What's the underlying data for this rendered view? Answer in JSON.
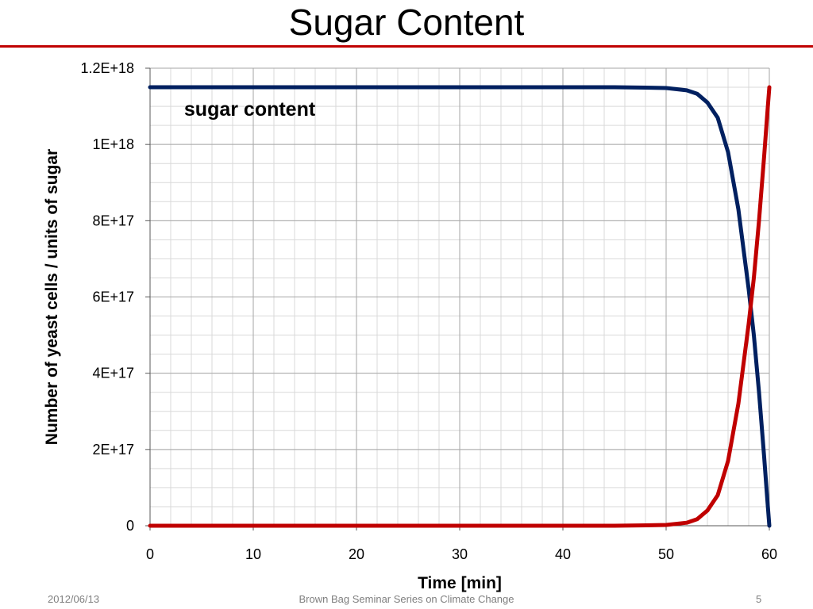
{
  "slide": {
    "title": "Sugar Content",
    "footer_date": "2012/06/13",
    "footer_center": "Brown Bag Seminar Series on Climate Change",
    "page_number": "5"
  },
  "colors": {
    "title_rule": "#c00000",
    "sugar_series": "#002060",
    "yeast_series": "#c00000",
    "major_grid": "#a6a6a6",
    "minor_grid": "#d9d9d9"
  },
  "chart_data": {
    "type": "line",
    "title": "",
    "xlabel": "Time [min]",
    "ylabel": "Number of yeast cells / units of sugar",
    "xlim": [
      0,
      60
    ],
    "ylim": [
      0,
      1.2e+18
    ],
    "x_ticks": [
      0,
      10,
      20,
      30,
      40,
      50,
      60
    ],
    "x_tick_labels": [
      "0",
      "10",
      "20",
      "30",
      "40",
      "50",
      "60"
    ],
    "y_ticks": [
      0,
      2e+17,
      4e+17,
      6e+17,
      8e+17,
      1e+18,
      1.2e+18
    ],
    "y_tick_labels": [
      "0",
      "2E+17",
      "4E+17",
      "6E+17",
      "8E+17",
      "1E+18",
      "1.2E+18"
    ],
    "grid": true,
    "annotations": [
      {
        "text": "sugar content",
        "x": 3.3,
        "y": 1.075e+18
      }
    ],
    "series": [
      {
        "color": "#002060",
        "x": [
          0,
          10,
          20,
          30,
          40,
          45,
          48,
          50,
          52,
          53,
          54,
          55,
          56,
          57,
          58,
          58.5,
          59,
          59.5,
          59.8,
          60
        ],
        "y": [
          1.15e+18,
          1.15e+18,
          1.15e+18,
          1.15e+18,
          1.15e+18,
          1.15e+18,
          1.149e+18,
          1.148e+18,
          1.142e+18,
          1.133e+18,
          1.11e+18,
          1.07e+18,
          9.8e+17,
          8.3e+17,
          6.2e+17,
          5e+17,
          3.5e+17,
          1.8e+17,
          7e+16,
          0
        ]
      },
      {
        "color": "#c00000",
        "x": [
          0,
          10,
          20,
          30,
          40,
          45,
          48,
          50,
          52,
          53,
          54,
          55,
          56,
          57,
          58,
          58.5,
          59,
          59.5,
          59.8,
          60
        ],
        "y": [
          0,
          0,
          0,
          0,
          0,
          0,
          1000000000000000.0,
          2000000000000000.0,
          8000000000000000.0,
          1.7e+16,
          4e+16,
          8e+16,
          1.7e+17,
          3.2e+17,
          5.3e+17,
          6.5e+17,
          8e+17,
          9.7e+17,
          1.08e+18,
          1.15e+18
        ]
      }
    ]
  }
}
